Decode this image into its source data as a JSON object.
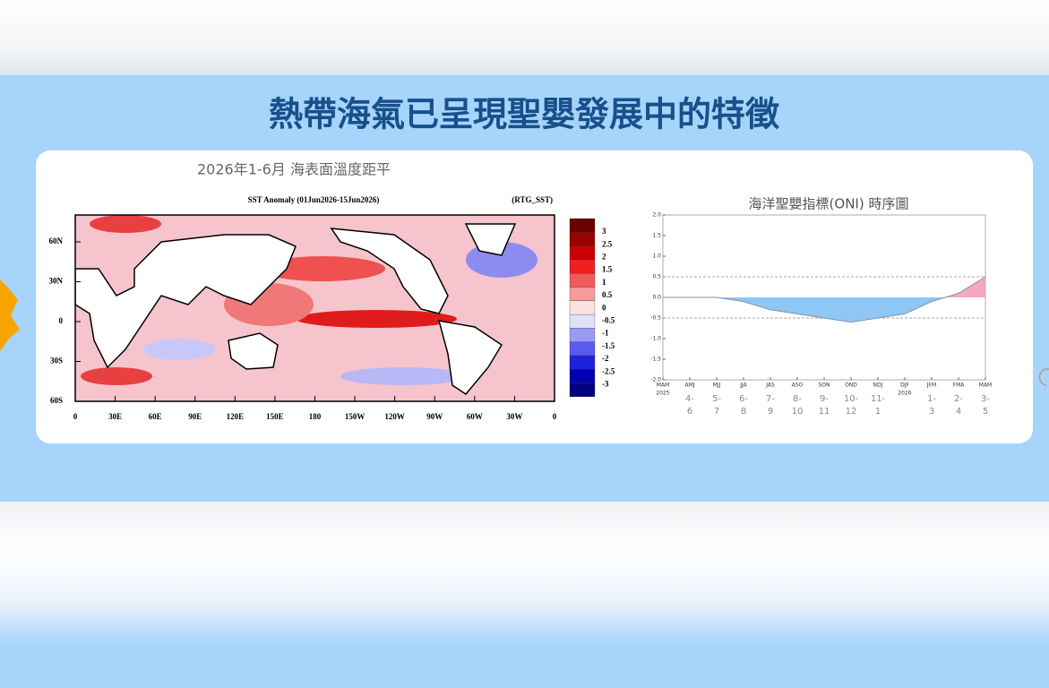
{
  "header": {
    "title": "熱帶海氣已呈現聖嬰發展中的特徵"
  },
  "map": {
    "subtitle": "2026年1-6月 海表面溫度距平",
    "title": "SST Anomaly (01Jun2026-15Jun2026)",
    "source": "(RTG_SST)",
    "lat_labels": [
      "60N",
      "30N",
      "0",
      "30S",
      "60S"
    ],
    "lon_labels": [
      "0",
      "30E",
      "60E",
      "90E",
      "120E",
      "150E",
      "180",
      "150W",
      "120W",
      "90W",
      "60W",
      "30W",
      "0"
    ],
    "colorbar_labels": [
      "3",
      "2.5",
      "2",
      "1.5",
      "1",
      "0.5",
      "0",
      "-0.5",
      "-1",
      "-1.5",
      "-2",
      "-2.5",
      "-3"
    ]
  },
  "chart_data": {
    "type": "area",
    "title": "海洋聖嬰指標(ONI) 時序圖",
    "categories": [
      "MAM",
      "AMJ",
      "MJJ",
      "JJA",
      "JAS",
      "ASO",
      "SON",
      "OND",
      "NDJ",
      "DJF",
      "JFM",
      "FMA",
      "MAM"
    ],
    "year_labels": [
      "2025",
      null,
      null,
      null,
      null,
      null,
      null,
      null,
      null,
      "2026",
      null,
      null,
      null
    ],
    "month_labels": [
      null,
      [
        "4-",
        "6"
      ],
      [
        "5-",
        "7"
      ],
      [
        "6-",
        "8"
      ],
      [
        "7-",
        "9"
      ],
      [
        "8-",
        "10"
      ],
      [
        "9-",
        "11"
      ],
      [
        "10-",
        "12"
      ],
      [
        "11-",
        "1"
      ],
      null,
      [
        "1-",
        "3"
      ],
      [
        "2-",
        "4"
      ],
      [
        "3-",
        "5"
      ]
    ],
    "values": [
      0,
      0,
      0,
      -0.1,
      -0.3,
      -0.4,
      -0.5,
      -0.6,
      -0.5,
      -0.4,
      -0.1,
      0.1,
      0.5
    ],
    "ylim": [
      -2,
      2
    ],
    "yticks": [
      {
        "value": -2,
        "label": "-2.0"
      },
      {
        "value": -1.5,
        "label": "-1.5"
      },
      {
        "value": -1,
        "label": "-1.0"
      },
      {
        "value": -0.5,
        "label": "-0.5"
      },
      {
        "value": 0,
        "label": "0.0"
      },
      {
        "value": 0.5,
        "label": "0.5"
      },
      {
        "value": 1,
        "label": "1.0"
      },
      {
        "value": 1.5,
        "label": "1.5"
      },
      {
        "value": 2,
        "label": "2.0"
      }
    ],
    "ref_lines": [
      0.5,
      -0.5
    ],
    "positive_color": "#f5a8c2",
    "negative_color": "#8fc6f4",
    "line_color": "#7f95ad"
  }
}
